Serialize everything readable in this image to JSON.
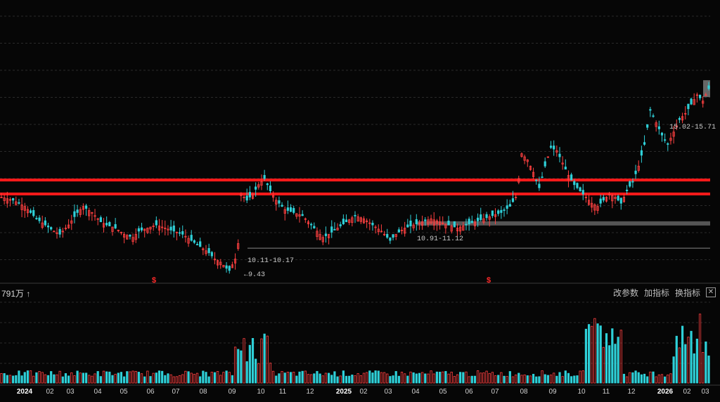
{
  "chart_data": [
    {
      "type": "candlestick",
      "annotations": {
        "low_price": "←9.43",
        "range_1": "10.11-10.17",
        "range_2": "10.91-11.12",
        "range_3": "15.02-15.71",
        "signal_mark": "$"
      },
      "x_ticks": [
        "2024",
        "02",
        "03",
        "04",
        "05",
        "06",
        "07",
        "08",
        "09",
        "10",
        "11",
        "12",
        "2025",
        "02",
        "03",
        "04",
        "05",
        "06",
        "07",
        "08",
        "09",
        "10",
        "11",
        "12",
        "2026",
        "02",
        "03"
      ],
      "series_price_path": [
        [
          0,
          11.8
        ],
        [
          4,
          11.7
        ],
        [
          8,
          11.5
        ],
        [
          12,
          11.1
        ],
        [
          15,
          10.9
        ],
        [
          18,
          10.7
        ],
        [
          20,
          10.6
        ],
        [
          23,
          10.9
        ],
        [
          26,
          11.3
        ],
        [
          28,
          11.5
        ],
        [
          31,
          11.3
        ],
        [
          34,
          11.0
        ],
        [
          36,
          10.9
        ],
        [
          39,
          10.8
        ],
        [
          42,
          10.6
        ],
        [
          45,
          10.5
        ],
        [
          47,
          10.7
        ],
        [
          50,
          10.8
        ],
        [
          53,
          10.9
        ],
        [
          56,
          10.8
        ],
        [
          59,
          10.7
        ],
        [
          62,
          10.6
        ],
        [
          65,
          10.4
        ],
        [
          68,
          10.2
        ],
        [
          71,
          10.0
        ],
        [
          73,
          9.8
        ],
        [
          75,
          9.7
        ],
        [
          77,
          9.5
        ],
        [
          78,
          9.43
        ],
        [
          80,
          9.8
        ],
        [
          81,
          10.3
        ],
        [
          82,
          11.9
        ],
        [
          84,
          11.7
        ],
        [
          86,
          11.9
        ],
        [
          88,
          12.2
        ],
        [
          90,
          12.4
        ],
        [
          92,
          12.0
        ],
        [
          94,
          11.7
        ],
        [
          97,
          11.4
        ],
        [
          100,
          11.3
        ],
        [
          103,
          11.2
        ],
        [
          106,
          10.9
        ],
        [
          108,
          10.7
        ],
        [
          110,
          10.5
        ],
        [
          112,
          10.6
        ],
        [
          115,
          10.8
        ],
        [
          118,
          11.0
        ],
        [
          121,
          11.2
        ],
        [
          124,
          11.1
        ],
        [
          127,
          10.9
        ],
        [
          130,
          10.7
        ],
        [
          132,
          10.5
        ],
        [
          133,
          10.4
        ],
        [
          135,
          10.6
        ],
        [
          138,
          10.8
        ],
        [
          141,
          10.9
        ],
        [
          144,
          11.0
        ],
        [
          147,
          11.1
        ],
        [
          150,
          11.0
        ],
        [
          153,
          10.9
        ],
        [
          156,
          10.8
        ],
        [
          159,
          10.9
        ],
        [
          162,
          11.0
        ],
        [
          165,
          11.1
        ],
        [
          168,
          11.2
        ],
        [
          171,
          11.3
        ],
        [
          174,
          11.5
        ],
        [
          176,
          11.8
        ],
        [
          177,
          12.4
        ],
        [
          178,
          13.2
        ],
        [
          180,
          13.0
        ],
        [
          182,
          12.6
        ],
        [
          184,
          12.1
        ],
        [
          186,
          12.8
        ],
        [
          188,
          13.4
        ],
        [
          190,
          13.3
        ],
        [
          192,
          12.9
        ],
        [
          194,
          12.5
        ],
        [
          196,
          12.2
        ],
        [
          198,
          12.0
        ],
        [
          200,
          11.8
        ],
        [
          202,
          11.6
        ],
        [
          204,
          11.5
        ],
        [
          206,
          11.7
        ],
        [
          208,
          11.9
        ],
        [
          210,
          11.8
        ],
        [
          212,
          11.6
        ],
        [
          214,
          12.0
        ],
        [
          216,
          12.3
        ],
        [
          218,
          12.8
        ],
        [
          220,
          13.5
        ],
        [
          222,
          14.6
        ],
        [
          224,
          14.2
        ],
        [
          226,
          13.8
        ],
        [
          228,
          13.5
        ],
        [
          230,
          13.9
        ],
        [
          232,
          14.3
        ],
        [
          234,
          14.5
        ],
        [
          236,
          14.8
        ],
        [
          238,
          15.1
        ],
        [
          240,
          14.9
        ],
        [
          242,
          15.3
        ]
      ],
      "volume_unit_label": "791万 ↑",
      "indicator_buttons": [
        "改参数",
        "加指标",
        "换指标"
      ]
    }
  ]
}
